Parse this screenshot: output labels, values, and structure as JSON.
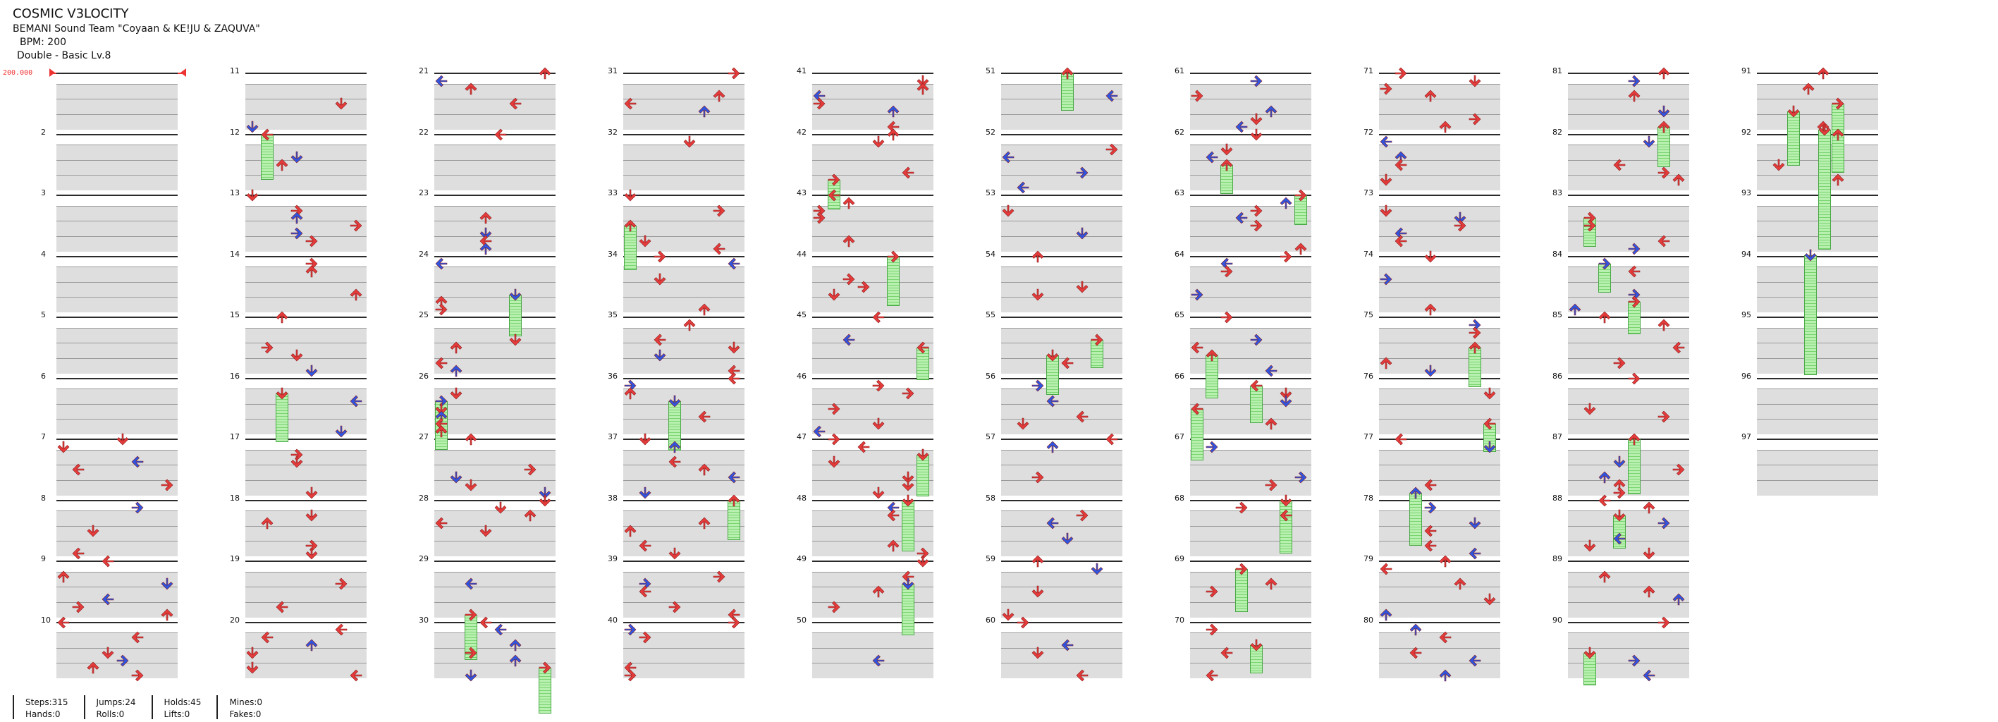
{
  "header": {
    "title": "COSMIC V3LOCITY",
    "artist": "BEMANI Sound Team \"Coyaan & KE!JU & ZAQUVA\"",
    "bpm_text": "BPM: 200",
    "difficulty": "Double - Basic  Lv.8"
  },
  "bpm_marker": "200.000",
  "measure_labels": [
    "2",
    "3",
    "4",
    "5",
    "6",
    "7",
    "8",
    "9",
    "10",
    "11",
    "12",
    "13",
    "14",
    "15",
    "16",
    "17",
    "18",
    "19",
    "20",
    "21",
    "22",
    "23",
    "24",
    "25",
    "26",
    "27",
    "28",
    "29",
    "30",
    "31",
    "32",
    "33",
    "34",
    "35",
    "36",
    "37",
    "38",
    "39",
    "40",
    "41",
    "42",
    "43",
    "44",
    "45",
    "46",
    "47",
    "48",
    "49",
    "50",
    "51",
    "52",
    "53",
    "54",
    "55",
    "56",
    "57",
    "58",
    "59",
    "60",
    "61",
    "62",
    "63",
    "64",
    "65",
    "66",
    "67",
    "68",
    "69",
    "70",
    "71",
    "72",
    "73",
    "74",
    "75",
    "76",
    "77",
    "78",
    "79",
    "80",
    "81",
    "82",
    "83",
    "84",
    "85",
    "86",
    "87",
    "88",
    "89",
    "90",
    "91",
    "92",
    "93",
    "94",
    "95",
    "96",
    "97"
  ],
  "colors": {
    "quarter": "#e53b3b",
    "eighth": "#2f55e0",
    "sixteenth": "#e8d23a",
    "hold": "#79d46f"
  },
  "stats": {
    "steps": "Steps:315",
    "hands": "Hands:0",
    "jumps": "Jumps:24",
    "rolls": "Rolls:0",
    "holds": "Holds:45",
    "lifts": "Lifts:0",
    "mines": "Mines:0",
    "fakes": "Fakes:0"
  }
}
